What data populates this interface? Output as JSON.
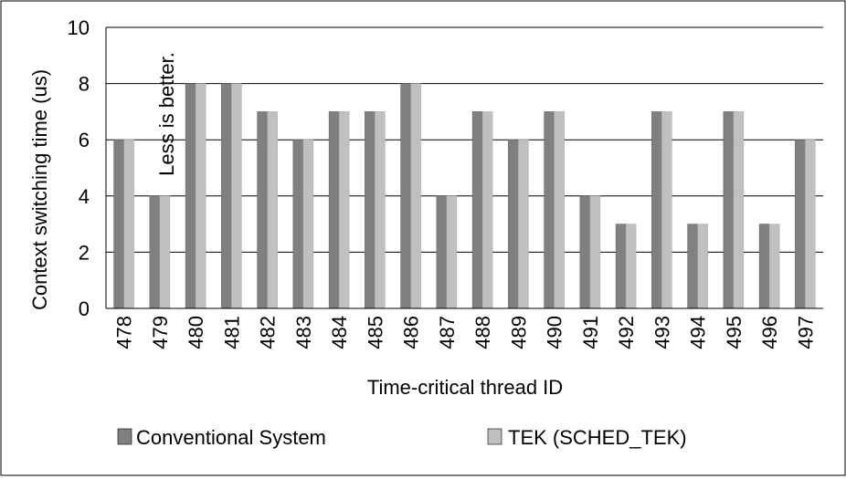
{
  "chart_data": {
    "type": "bar",
    "xlabel": "Time-critical thread ID",
    "ylabel": "Context switching time (us)",
    "ylim": [
      0,
      10
    ],
    "yticks": [
      "0",
      "2",
      "4",
      "6",
      "8",
      "10"
    ],
    "categories": [
      "478",
      "479",
      "480",
      "481",
      "482",
      "483",
      "484",
      "485",
      "486",
      "487",
      "488",
      "489",
      "490",
      "491",
      "492",
      "493",
      "494",
      "495",
      "496",
      "497"
    ],
    "series": [
      {
        "name": "Conventional System",
        "color": "#808080",
        "values": [
          6,
          4,
          8,
          8,
          7,
          6,
          7,
          7,
          8,
          4,
          7,
          6,
          7,
          4,
          3,
          7,
          3,
          7,
          3,
          6
        ]
      },
      {
        "name": "TEK (SCHED_TEK)",
        "color": "#c0c0c0",
        "values": [
          6,
          4,
          8,
          8,
          7,
          6,
          7,
          7,
          8,
          4,
          7,
          6,
          7,
          4,
          3,
          7,
          3,
          7,
          3,
          6
        ]
      }
    ],
    "annotation": "Less is better.",
    "grid": true,
    "legend_position": "bottom"
  }
}
